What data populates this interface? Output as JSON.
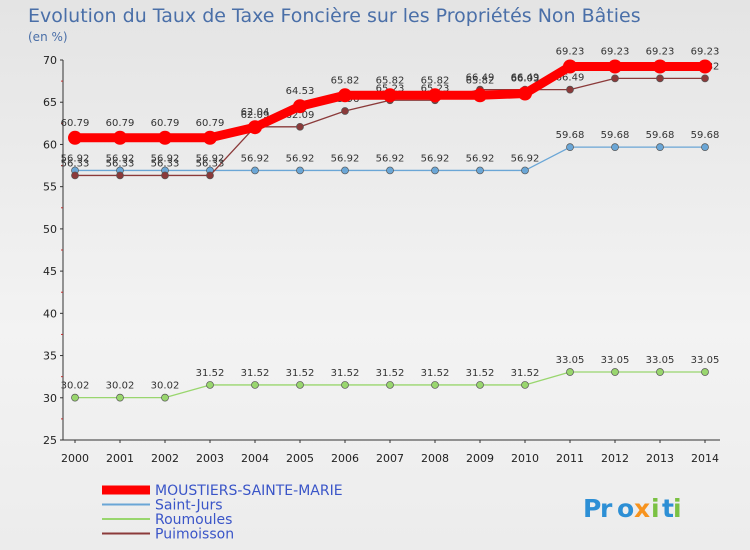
{
  "chart_data": {
    "type": "line",
    "title": "Evolution du Taux de Taxe Foncière sur les Propriétés Non Bâties",
    "subtitle": "(en %)",
    "x": [
      "2000",
      "2001",
      "2002",
      "2003",
      "2004",
      "2005",
      "2006",
      "2007",
      "2008",
      "2009",
      "2010",
      "2011",
      "2012",
      "2013",
      "2014"
    ],
    "ylim": [
      25,
      70
    ],
    "yticks": [
      25,
      30,
      35,
      40,
      45,
      50,
      55,
      60,
      65,
      70
    ],
    "grid": false,
    "legend_position": "bottom-left",
    "series": [
      {
        "name": "MOUSTIERS-SAINTE-MARIE",
        "color": "#ff0000",
        "labels": [
          "60.79",
          "60.79",
          "60.79",
          "60.79",
          "62.04",
          "64.53",
          "65.82",
          "65.82",
          "65.82",
          "65.82",
          "66.03",
          "69.23",
          "69.23",
          "69.23",
          "69.23"
        ],
        "values": [
          60.79,
          60.79,
          60.79,
          60.79,
          62.04,
          64.53,
          65.82,
          65.82,
          65.82,
          65.82,
          66.03,
          69.23,
          69.23,
          69.23,
          69.23
        ]
      },
      {
        "name": "Saint-Jurs",
        "color": "#6aa6d6",
        "labels": [
          "56.92",
          "56.92",
          "56.92",
          "56.92",
          "56.92",
          "56.92",
          "56.92",
          "56.92",
          "56.92",
          "56.92",
          "56.92",
          "59.68",
          "59.68",
          "59.68",
          "59.68"
        ],
        "values": [
          56.92,
          56.92,
          56.92,
          56.92,
          56.92,
          56.92,
          56.92,
          56.92,
          56.92,
          56.92,
          56.92,
          59.68,
          59.68,
          59.68,
          59.68
        ]
      },
      {
        "name": "Roumoules",
        "color": "#99d66e",
        "labels": [
          "30.02",
          "30.02",
          "30.02",
          "31.52",
          "31.52",
          "31.52",
          "31.52",
          "31.52",
          "31.52",
          "31.52",
          "31.52",
          "33.05",
          "33.05",
          "33.05",
          "33.05"
        ],
        "values": [
          30.02,
          30.02,
          30.02,
          31.52,
          31.52,
          31.52,
          31.52,
          31.52,
          31.52,
          31.52,
          31.52,
          33.05,
          33.05,
          33.05,
          33.05
        ]
      },
      {
        "name": "Puimoisson",
        "color": "#8b3a3a",
        "labels": [
          "56.33",
          "56.33",
          "56.33",
          "56.33",
          "62.09",
          "62.09",
          "63.96",
          "65.23",
          "65.23",
          "66.49",
          "66.49",
          "66.49",
          "67.82",
          "67.82",
          "67.82"
        ],
        "values": [
          56.33,
          56.33,
          56.33,
          56.33,
          62.09,
          62.09,
          63.96,
          65.23,
          65.23,
          66.49,
          66.49,
          66.49,
          67.82,
          67.82,
          67.82
        ]
      }
    ]
  },
  "logo": {
    "text": "Proxiti",
    "colors": [
      "#2d8fd5",
      "#f7931e",
      "#7ac143"
    ]
  }
}
